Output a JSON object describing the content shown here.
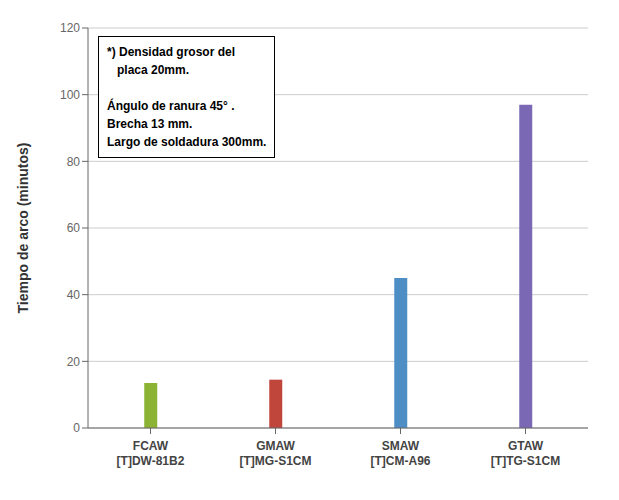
{
  "chart_data": {
    "type": "bar",
    "categories": [
      "FCAW\n[T]DW-81B2",
      "GMAW\n[T]MG-S1CM",
      "SMAW\n[T]CM-A96",
      "GTAW\n[T]TG-S1CM"
    ],
    "values": [
      13.5,
      14.5,
      45,
      97
    ],
    "colors": [
      "#8db334",
      "#c0453a",
      "#4e8ec4",
      "#7b68b5"
    ],
    "ylabel": "Tiempo de arco (minutos)",
    "ylim": [
      0,
      120
    ],
    "yticks": [
      0,
      20,
      40,
      60,
      80,
      100,
      120
    ],
    "annotation": "*) Densidad grosor del\n   placa 20mm.\n\nÁngulo de ranura 45° .\nBrecha 13 mm.\nLargo de soldadura 300mm.",
    "grid": true
  }
}
